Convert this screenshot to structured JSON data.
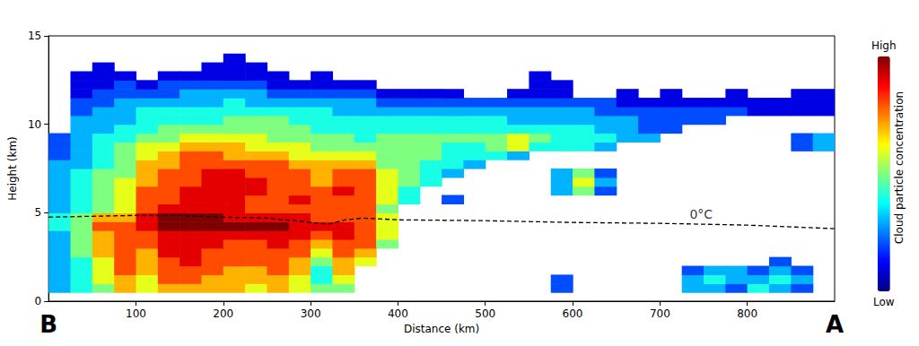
{
  "chart_data": {
    "type": "heatmap",
    "x_label": "Distance (km)",
    "y_label": "Height (km)",
    "xlim": [
      0,
      900
    ],
    "xticks": [
      100,
      200,
      300,
      400,
      500,
      600,
      700,
      800
    ],
    "ylim": [
      0,
      15
    ],
    "yticks": [
      0,
      5,
      10,
      15
    ],
    "grid": false,
    "cells": {
      "x": [
        12.5,
        37.5,
        62.5,
        87.5,
        112.5,
        137.5,
        162.5,
        187.5,
        212.5,
        237.5,
        262.5,
        287.5,
        312.5,
        337.5,
        362.5,
        387.5,
        412.5,
        437.5,
        462.5,
        487.5,
        512.5,
        537.5,
        562.5,
        587.5,
        612.5,
        637.5,
        662.5,
        687.5,
        712.5,
        737.5,
        762.5,
        787.5,
        812.5,
        837.5,
        862.5,
        887.5
      ],
      "y": [
        0.75,
        1.25,
        1.75,
        2.25,
        2.75,
        3.25,
        3.75,
        4.25,
        4.75,
        5.25,
        5.75,
        6.25,
        6.75,
        7.25,
        7.75,
        8.25,
        8.75,
        9.25,
        9.75,
        10.25,
        10.75,
        11.25,
        11.75,
        12.25,
        12.75,
        13.25,
        13.75
      ],
      "values": [
        [
          3,
          4,
          5,
          7,
          6,
          7,
          7,
          7,
          7,
          6,
          7,
          6,
          5,
          5,
          null,
          null,
          null,
          null,
          null,
          null,
          null,
          null,
          null,
          2,
          null,
          null,
          null,
          null,
          null,
          3,
          3,
          2,
          4,
          3,
          2,
          null
        ],
        [
          3,
          4,
          6,
          7,
          6,
          8,
          8,
          7,
          7,
          7,
          7,
          6,
          4,
          6,
          null,
          null,
          null,
          null,
          null,
          null,
          null,
          null,
          null,
          2,
          null,
          null,
          null,
          null,
          null,
          3,
          4,
          3,
          3,
          4,
          3,
          null
        ],
        [
          3,
          4,
          6,
          8,
          7,
          8,
          8,
          8,
          7,
          7,
          8,
          7,
          4,
          7,
          null,
          null,
          null,
          null,
          null,
          null,
          null,
          null,
          null,
          null,
          null,
          null,
          null,
          null,
          null,
          2,
          3,
          3,
          2,
          3,
          2,
          null
        ],
        [
          3,
          4,
          6,
          8,
          7,
          8,
          9,
          8,
          8,
          8,
          8,
          7,
          5,
          7,
          6,
          null,
          null,
          null,
          null,
          null,
          null,
          null,
          null,
          null,
          null,
          null,
          null,
          null,
          null,
          null,
          null,
          null,
          null,
          2,
          null,
          null
        ],
        [
          3,
          5,
          7,
          8,
          7,
          9,
          9,
          8,
          8,
          8,
          8,
          8,
          6,
          8,
          7,
          null,
          null,
          null,
          null,
          null,
          null,
          null,
          null,
          null,
          null,
          null,
          null,
          null,
          null,
          null,
          null,
          null,
          null,
          null,
          null,
          null
        ],
        [
          3,
          5,
          7,
          8,
          8,
          9,
          9,
          9,
          8,
          8,
          9,
          8,
          7,
          8,
          8,
          5,
          null,
          null,
          null,
          null,
          null,
          null,
          null,
          null,
          null,
          null,
          null,
          null,
          null,
          null,
          null,
          null,
          null,
          null,
          null,
          null
        ],
        [
          3,
          5,
          7,
          8,
          8,
          9,
          9,
          9,
          9,
          9,
          9,
          9,
          8,
          9,
          8,
          6,
          null,
          null,
          null,
          null,
          null,
          null,
          null,
          null,
          null,
          null,
          null,
          null,
          null,
          null,
          null,
          null,
          null,
          null,
          null,
          null
        ],
        [
          4,
          5,
          8,
          8,
          9,
          10,
          10,
          10,
          10,
          10,
          10,
          9,
          9,
          9,
          8,
          6,
          null,
          null,
          null,
          null,
          null,
          null,
          null,
          null,
          null,
          null,
          null,
          null,
          null,
          null,
          null,
          null,
          null,
          null,
          null,
          null
        ],
        [
          4,
          5,
          7,
          7,
          9,
          10,
          10,
          10,
          9,
          9,
          9,
          9,
          8,
          8,
          8,
          6,
          null,
          null,
          null,
          null,
          null,
          null,
          null,
          null,
          null,
          null,
          null,
          null,
          null,
          null,
          null,
          null,
          null,
          null,
          null,
          null
        ],
        [
          3,
          4,
          5,
          6,
          8,
          9,
          9,
          9,
          9,
          8,
          8,
          8,
          8,
          8,
          8,
          5,
          null,
          null,
          null,
          null,
          null,
          null,
          null,
          null,
          null,
          null,
          null,
          null,
          null,
          null,
          null,
          null,
          null,
          null,
          null,
          null
        ],
        [
          3,
          4,
          5,
          6,
          8,
          8,
          9,
          9,
          9,
          8,
          8,
          9,
          8,
          8,
          8,
          6,
          4,
          null,
          2,
          null,
          null,
          null,
          null,
          null,
          null,
          null,
          null,
          null,
          null,
          null,
          null,
          null,
          null,
          null,
          null,
          null
        ],
        [
          3,
          4,
          5,
          6,
          8,
          8,
          9,
          9,
          9,
          9,
          8,
          8,
          8,
          9,
          8,
          6,
          4,
          null,
          null,
          null,
          null,
          null,
          null,
          3,
          5,
          2,
          null,
          null,
          null,
          null,
          null,
          null,
          null,
          null,
          null,
          null
        ],
        [
          3,
          4,
          5,
          6,
          7,
          8,
          8,
          9,
          9,
          9,
          8,
          8,
          7,
          8,
          8,
          6,
          5,
          4,
          null,
          null,
          null,
          null,
          null,
          3,
          6,
          3,
          null,
          null,
          null,
          null,
          null,
          null,
          null,
          null,
          null,
          null
        ],
        [
          3,
          4,
          5,
          5,
          7,
          8,
          8,
          9,
          9,
          8,
          8,
          8,
          7,
          8,
          8,
          6,
          5,
          4,
          3,
          null,
          null,
          null,
          null,
          3,
          5,
          2,
          null,
          null,
          null,
          null,
          null,
          null,
          null,
          null,
          null,
          null
        ],
        [
          3,
          3,
          4,
          5,
          7,
          7,
          8,
          8,
          8,
          8,
          8,
          7,
          7,
          7,
          7,
          5,
          5,
          4,
          4,
          3,
          null,
          null,
          null,
          null,
          null,
          null,
          null,
          null,
          null,
          null,
          null,
          null,
          null,
          null,
          null,
          null
        ],
        [
          2,
          3,
          4,
          5,
          6,
          7,
          8,
          8,
          7,
          7,
          7,
          6,
          6,
          6,
          6,
          5,
          5,
          5,
          4,
          4,
          4,
          3,
          null,
          null,
          null,
          null,
          null,
          null,
          null,
          null,
          null,
          null,
          null,
          null,
          null,
          null
        ],
        [
          2,
          3,
          4,
          5,
          6,
          6,
          7,
          7,
          7,
          6,
          6,
          6,
          5,
          5,
          5,
          5,
          5,
          5,
          4,
          4,
          5,
          6,
          4,
          4,
          4,
          3,
          null,
          null,
          null,
          null,
          null,
          null,
          null,
          null,
          2,
          3
        ],
        [
          2,
          3,
          4,
          4,
          5,
          5,
          6,
          6,
          6,
          6,
          5,
          5,
          5,
          5,
          4,
          5,
          5,
          5,
          5,
          5,
          5,
          6,
          5,
          4,
          4,
          4,
          3,
          3,
          null,
          null,
          null,
          null,
          null,
          null,
          2,
          3
        ],
        [
          null,
          3,
          3,
          4,
          4,
          5,
          5,
          5,
          5,
          5,
          5,
          5,
          4,
          4,
          4,
          4,
          4,
          4,
          4,
          4,
          4,
          4,
          4,
          4,
          4,
          3,
          3,
          2,
          2,
          null,
          null,
          null,
          null,
          null,
          null,
          null
        ],
        [
          null,
          3,
          3,
          3,
          4,
          4,
          4,
          4,
          5,
          5,
          5,
          4,
          4,
          4,
          4,
          4,
          4,
          4,
          4,
          4,
          4,
          3,
          3,
          3,
          3,
          3,
          3,
          2,
          2,
          2,
          2,
          null,
          null,
          null,
          null,
          null
        ],
        [
          null,
          2,
          3,
          3,
          4,
          4,
          4,
          4,
          4,
          4,
          4,
          4,
          4,
          3,
          3,
          3,
          3,
          3,
          3,
          3,
          3,
          3,
          3,
          3,
          3,
          2,
          2,
          2,
          2,
          2,
          2,
          2,
          1,
          1,
          1,
          1
        ],
        [
          null,
          2,
          2,
          3,
          3,
          3,
          3,
          3,
          4,
          3,
          3,
          3,
          3,
          3,
          3,
          2,
          2,
          2,
          2,
          2,
          2,
          2,
          2,
          2,
          2,
          2,
          1,
          1,
          1,
          1,
          1,
          1,
          1,
          1,
          1,
          1
        ],
        [
          null,
          1,
          2,
          2,
          2,
          2,
          3,
          3,
          3,
          3,
          2,
          2,
          2,
          2,
          2,
          1,
          1,
          1,
          1,
          null,
          null,
          1,
          1,
          1,
          null,
          null,
          1,
          null,
          1,
          null,
          null,
          1,
          null,
          null,
          1,
          1
        ],
        [
          null,
          1,
          1,
          2,
          1,
          2,
          2,
          2,
          2,
          2,
          1,
          1,
          1,
          1,
          1,
          null,
          null,
          null,
          null,
          null,
          null,
          null,
          1,
          1,
          null,
          null,
          null,
          null,
          null,
          null,
          null,
          null,
          null,
          null,
          null,
          null
        ],
        [
          null,
          1,
          1,
          1,
          null,
          1,
          1,
          1,
          1,
          1,
          1,
          null,
          1,
          null,
          null,
          null,
          null,
          null,
          null,
          null,
          null,
          null,
          1,
          null,
          null,
          null,
          null,
          null,
          null,
          null,
          null,
          null,
          null,
          null,
          null,
          null
        ],
        [
          null,
          null,
          1,
          null,
          null,
          null,
          null,
          1,
          1,
          1,
          null,
          null,
          null,
          null,
          null,
          null,
          null,
          null,
          null,
          null,
          null,
          null,
          null,
          null,
          null,
          null,
          null,
          null,
          null,
          null,
          null,
          null,
          null,
          null,
          null,
          null
        ],
        [
          null,
          null,
          null,
          null,
          null,
          null,
          null,
          null,
          1,
          null,
          null,
          null,
          null,
          null,
          null,
          null,
          null,
          null,
          null,
          null,
          null,
          null,
          null,
          null,
          null,
          null,
          null,
          null,
          null,
          null,
          null,
          null,
          null,
          null,
          null,
          null
        ]
      ]
    },
    "colorbar": {
      "label": "Cloud particle concentration",
      "range": [
        0,
        10
      ],
      "ticks": [
        {
          "value": 0,
          "label": "Low"
        },
        {
          "value": 10,
          "label": "High"
        }
      ]
    },
    "series": [
      {
        "type": "line",
        "color": "#000000",
        "line_style": "dashed",
        "x": [
          0,
          50,
          100,
          150,
          200,
          250,
          300,
          320,
          340,
          360,
          400,
          500,
          600,
          700,
          800,
          900
        ],
        "values": [
          4.75,
          4.8,
          4.85,
          4.85,
          4.75,
          4.7,
          4.45,
          4.35,
          4.6,
          4.7,
          4.6,
          4.55,
          4.45,
          4.4,
          4.3,
          4.1
        ]
      }
    ],
    "annotations": [
      {
        "text": "0°C",
        "x": 734,
        "y": 4.9
      },
      {
        "text": "B",
        "x": 0
      },
      {
        "text": "A",
        "x": 900
      }
    ]
  }
}
